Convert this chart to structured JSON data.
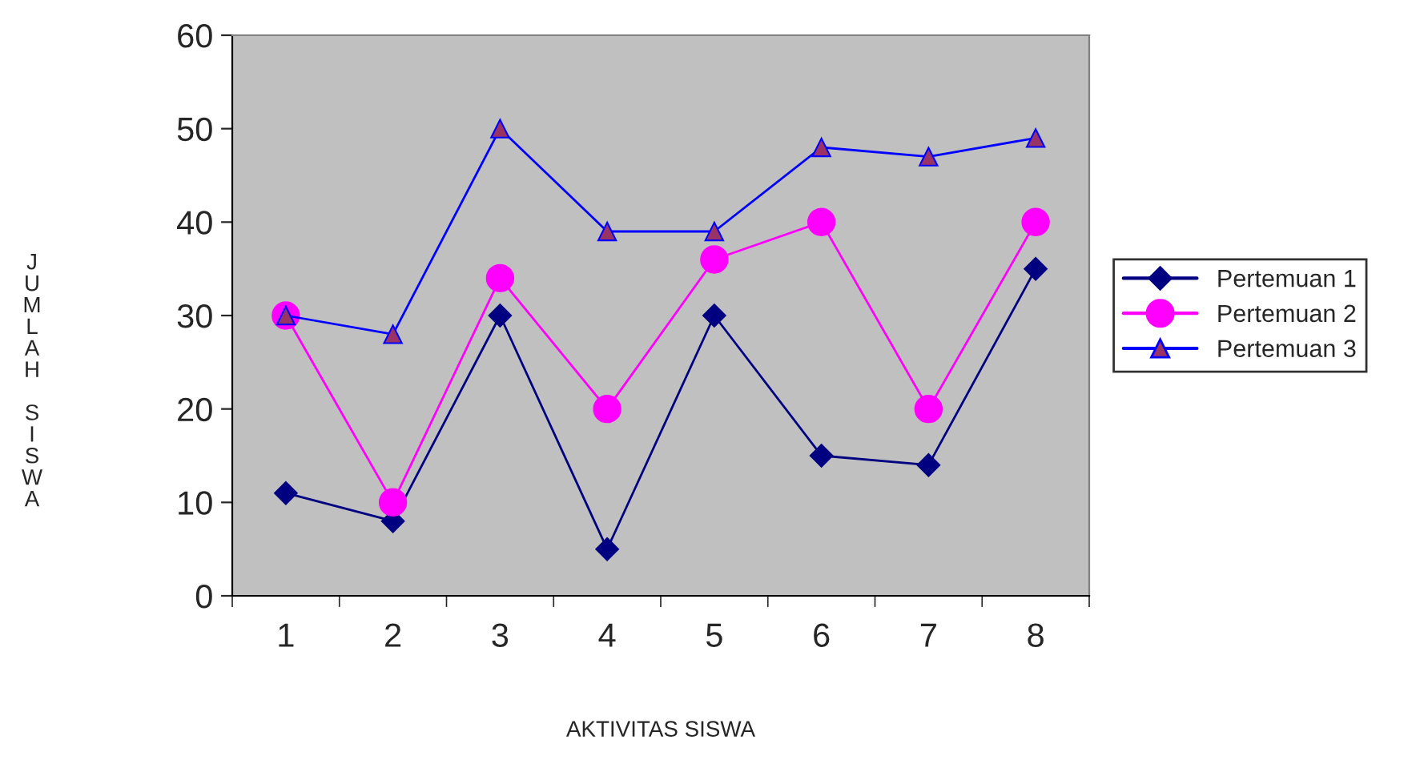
{
  "chart_data": {
    "type": "line",
    "xlabel": "AKTIVITAS SISWA",
    "ylabel": "JUMLAH SISWA",
    "categories": [
      "1",
      "2",
      "3",
      "4",
      "5",
      "6",
      "7",
      "8"
    ],
    "series": [
      {
        "name": "Pertemuan 1",
        "color": "#000080",
        "marker": "diamond",
        "values": [
          11,
          8,
          30,
          5,
          30,
          15,
          14,
          35
        ]
      },
      {
        "name": "Pertemuan 2",
        "color": "#ff00ff",
        "marker": "circle",
        "values": [
          30,
          10,
          34,
          20,
          36,
          40,
          20,
          40
        ]
      },
      {
        "name": "Pertemuan 3",
        "color": "#0000ff",
        "marker": "triangle",
        "values": [
          30,
          28,
          50,
          39,
          39,
          48,
          47,
          49
        ]
      }
    ],
    "ylim": [
      0,
      60
    ],
    "yticks": [
      0,
      10,
      20,
      30,
      40,
      50,
      60
    ],
    "grid": false,
    "legend": "right",
    "line_style": "solid"
  }
}
